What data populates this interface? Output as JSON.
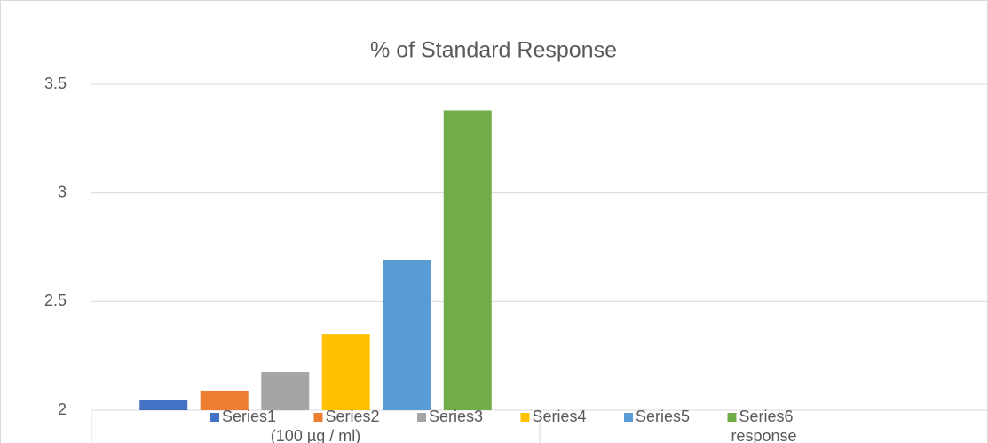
{
  "chart_data": {
    "type": "bar",
    "title": "% of Standard Response",
    "categories": [
      "(100 µg / ml)",
      "response"
    ],
    "series": [
      {
        "name": "Series1",
        "color": "#4472c4",
        "values": [
          2.045,
          null
        ]
      },
      {
        "name": "Series2",
        "color": "#ed7d31",
        "values": [
          2.09,
          null
        ]
      },
      {
        "name": "Series3",
        "color": "#a5a5a5",
        "values": [
          2.175,
          null
        ]
      },
      {
        "name": "Series4",
        "color": "#ffc000",
        "values": [
          2.35,
          null
        ]
      },
      {
        "name": "Series5",
        "color": "#5b9bd5",
        "values": [
          2.69,
          null
        ]
      },
      {
        "name": "Series6",
        "color": "#70ad47",
        "values": [
          3.38,
          null
        ]
      }
    ],
    "ylim": [
      2,
      3.5
    ],
    "yticks": [
      2,
      2.5,
      3,
      3.5
    ],
    "grid": true,
    "legend": "bottom"
  }
}
